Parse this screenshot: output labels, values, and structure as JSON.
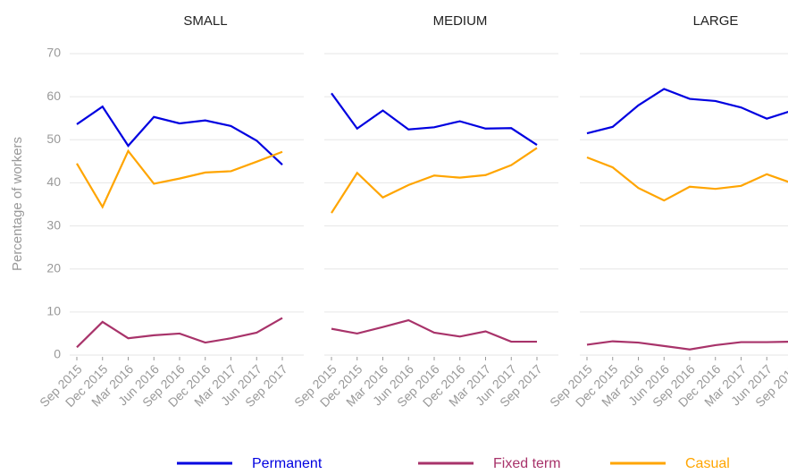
{
  "chart_data": {
    "type": "line",
    "ylabel": "Percentage of workers",
    "categories": [
      "Sep 2015",
      "Dec 2015",
      "Mar 2016",
      "Jun 2016",
      "Sep 2016",
      "Dec 2016",
      "Mar 2017",
      "Jun 2017",
      "Sep 2017"
    ],
    "ylim": [
      0,
      70
    ],
    "yticks": [
      0,
      10,
      20,
      30,
      40,
      50,
      60,
      70
    ],
    "grid": true,
    "series": [
      {
        "name": "Permanent",
        "color": "#0000e0"
      },
      {
        "name": "Fixed term",
        "color": "#a8336a"
      },
      {
        "name": "Casual",
        "color": "#ffa500"
      }
    ],
    "facets": [
      {
        "title": "SMALL",
        "series": [
          {
            "values": [
              53.6,
              57.7,
              48.6,
              55.3,
              53.8,
              54.5,
              53.2,
              49.8,
              44.2
            ]
          },
          {
            "values": [
              1.8,
              7.7,
              3.9,
              4.6,
              5.0,
              2.9,
              3.9,
              5.2,
              8.6
            ]
          },
          {
            "values": [
              44.5,
              34.4,
              47.4,
              39.8,
              41.0,
              42.4,
              42.7,
              44.9,
              47.2
            ]
          }
        ]
      },
      {
        "title": "MEDIUM",
        "series": [
          {
            "values": [
              60.8,
              52.6,
              56.8,
              52.4,
              52.9,
              54.3,
              52.6,
              52.7,
              48.8
            ]
          },
          {
            "values": [
              6.1,
              5.0,
              6.5,
              8.1,
              5.2,
              4.3,
              5.5,
              3.1,
              3.1
            ]
          },
          {
            "values": [
              33.0,
              42.3,
              36.6,
              39.5,
              41.7,
              41.2,
              41.8,
              44.1,
              48.1
            ]
          }
        ]
      },
      {
        "title": "LARGE",
        "series": [
          {
            "values": [
              51.5,
              53.0,
              58.0,
              61.8,
              59.5,
              59.0,
              57.5,
              54.9,
              56.8
            ]
          },
          {
            "values": [
              2.4,
              3.2,
              2.9,
              2.1,
              1.3,
              2.3,
              3.0,
              3.0,
              3.1
            ]
          },
          {
            "values": [
              45.9,
              43.6,
              38.8,
              35.9,
              39.1,
              38.6,
              39.3,
              42.0,
              39.9
            ]
          }
        ]
      }
    ]
  }
}
